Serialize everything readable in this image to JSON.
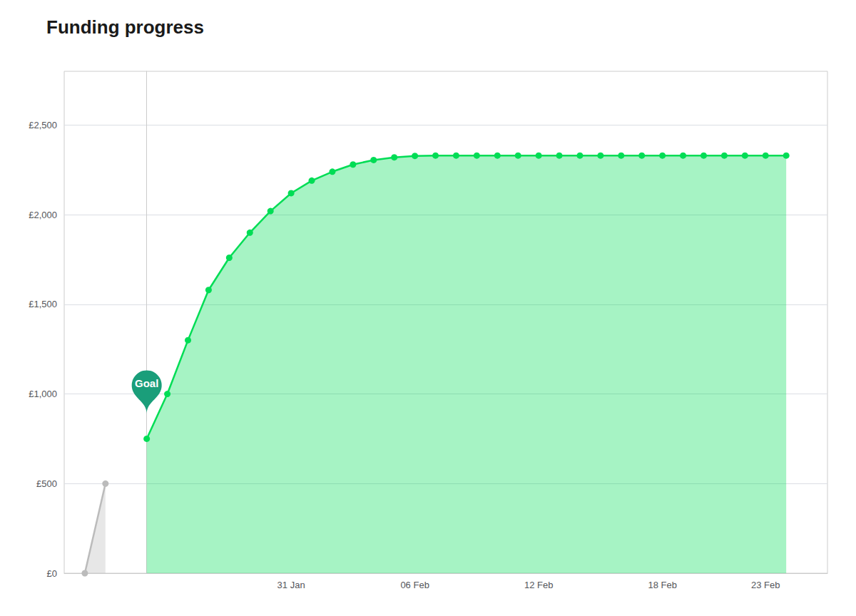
{
  "chart_data": {
    "type": "area",
    "title": "Funding progress",
    "marker": "circle",
    "series": [
      {
        "color": "#bbbbbb",
        "x": [
          -3,
          -2
        ],
        "values": [
          0,
          500
        ]
      },
      {
        "color": "#00dd55",
        "x": [
          0,
          1,
          2,
          3,
          4,
          5,
          6,
          7,
          8,
          9,
          10,
          11,
          12,
          13,
          14,
          15,
          16,
          17,
          18,
          19,
          20,
          21,
          22,
          23,
          24,
          25,
          26,
          27,
          28,
          29,
          30,
          31
        ],
        "values": [
          750,
          1000,
          1300,
          1580,
          1760,
          1900,
          2020,
          2120,
          2190,
          2240,
          2280,
          2305,
          2320,
          2328,
          2330,
          2330,
          2330,
          2330,
          2330,
          2330,
          2330,
          2330,
          2330,
          2330,
          2330,
          2330,
          2330,
          2330,
          2330,
          2330,
          2330,
          2330
        ]
      }
    ],
    "xlim": [
      -4,
      33
    ],
    "xticks": [
      {
        "value": 7,
        "label": "31 Jan"
      },
      {
        "value": 13,
        "label": "06 Feb"
      },
      {
        "value": 19,
        "label": "12 Feb"
      },
      {
        "value": 25,
        "label": "18 Feb"
      },
      {
        "value": 30,
        "label": "23 Feb"
      }
    ],
    "ylim": [
      0,
      2800
    ],
    "yticks": [
      {
        "value": 0,
        "label": "£0"
      },
      {
        "value": 500,
        "label": "£500"
      },
      {
        "value": 1000,
        "label": "£1,000"
      },
      {
        "value": 1500,
        "label": "£1,500"
      },
      {
        "value": 2000,
        "label": "£2,000"
      },
      {
        "value": 2500,
        "label": "£2,500"
      }
    ],
    "grid": true,
    "annotations": [
      {
        "text": "Goal",
        "x": 0,
        "y": 750,
        "color": "#1a9e7a"
      }
    ]
  }
}
